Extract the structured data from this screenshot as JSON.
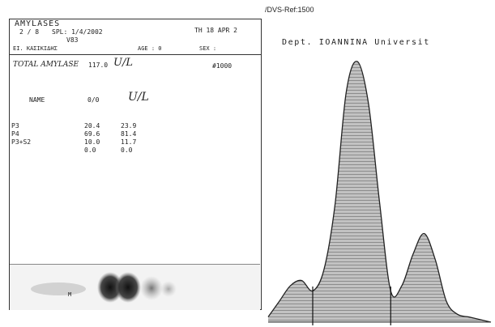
{
  "report": {
    "title": "AMYLASES",
    "patient_no": "2 / 8",
    "spl_label": "SPL: 1/4/2002",
    "spl_sub": "V83",
    "date": "TH 18 APR 2",
    "patient_name": "ΕΙ. ΚΑΣΙΚΙΔΗΣ",
    "age_label": "AGE : 0",
    "sex_label": "SEX :",
    "total_label": "TOTAL AMYLASE",
    "total_value": "117.0",
    "total_unit": "U/L",
    "sample_code": "#1000",
    "table": {
      "col_name": "NAME",
      "col_pct": "0/0",
      "col_ul": "U/L",
      "rows": [
        {
          "name": "P3",
          "pct": "20.4",
          "ul": "23.9"
        },
        {
          "name": "P4",
          "pct": "69.6",
          "ul": "81.4"
        },
        {
          "name": "P3+S2",
          "pct": "10.0",
          "ul": "11.7"
        },
        {
          "name": "",
          "pct": "0.0",
          "ul": "0.0"
        }
      ]
    },
    "gel_label": "M"
  },
  "header_ref": "/DVS-Ref:1500",
  "dept_label": "Dept. IOANNINA Universit",
  "colors": {
    "ink": "#222222",
    "fill": "#b8b8b8",
    "hatch": "#8c8c8c"
  },
  "chart_data": {
    "type": "area",
    "title": "",
    "xlabel": "",
    "ylabel": "",
    "x": [
      0,
      5,
      10,
      15,
      20,
      25,
      30,
      35,
      40,
      45,
      50,
      55,
      60,
      65,
      70,
      75,
      80,
      85,
      90,
      95,
      100
    ],
    "values": [
      2,
      8,
      14,
      16,
      12,
      20,
      45,
      88,
      100,
      84,
      46,
      12,
      14,
      26,
      34,
      24,
      8,
      3,
      2,
      1,
      0
    ],
    "fraction_boundaries_x": [
      20,
      55
    ],
    "fraction_names": [
      "P3",
      "P4",
      "P3+S2"
    ],
    "xlim": [
      0,
      100
    ],
    "ylim": [
      0,
      100
    ],
    "grid": false
  }
}
